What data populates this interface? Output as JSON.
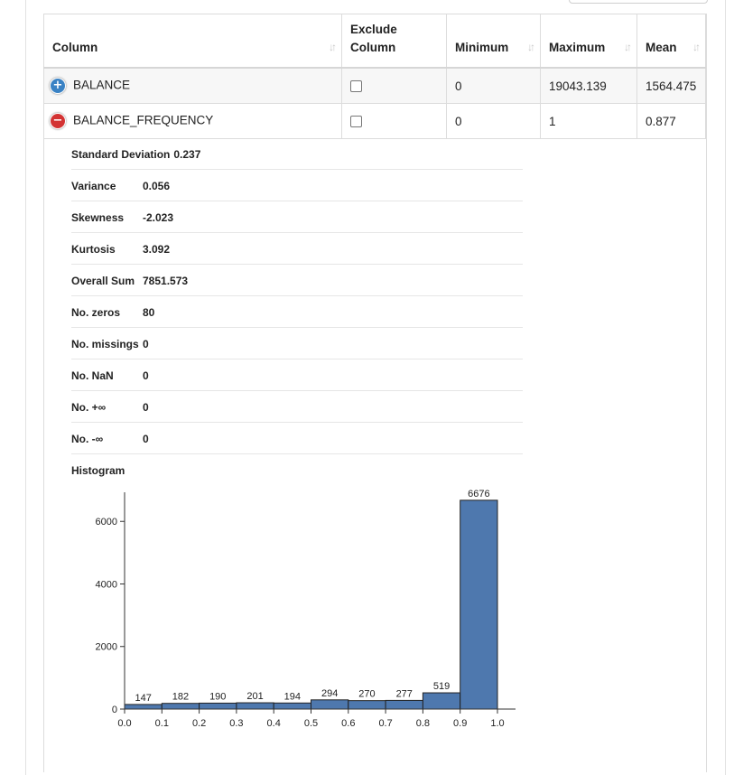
{
  "table": {
    "headers": [
      "Column",
      "Exclude Column",
      "Minimum",
      "Maximum",
      "Mean"
    ],
    "rows": [
      {
        "toggle": "+",
        "name": "BALANCE",
        "minimum": "0",
        "maximum": "19043.139",
        "mean": "1564.475"
      },
      {
        "toggle": "−",
        "name": "BALANCE_FREQUENCY",
        "minimum": "0",
        "maximum": "1",
        "mean": "0.877"
      }
    ]
  },
  "details": {
    "std_label": "Standard Deviation",
    "std_value": "0.237",
    "stats": [
      {
        "label": "Variance",
        "value": "0.056"
      },
      {
        "label": "Skewness",
        "value": "-2.023"
      },
      {
        "label": "Kurtosis",
        "value": "3.092"
      },
      {
        "label": "Overall Sum",
        "value": "7851.573"
      },
      {
        "label": "No. zeros",
        "value": "80"
      },
      {
        "label": "No. missings",
        "value": "0"
      },
      {
        "label": "No. NaN",
        "value": "0"
      },
      {
        "label": "No. +∞",
        "value": "0"
      },
      {
        "label": "No. -∞",
        "value": "0"
      }
    ],
    "histogram_label": "Histogram"
  },
  "chart_data": {
    "type": "bar",
    "bin_edges": [
      0.0,
      0.1,
      0.2,
      0.3,
      0.4,
      0.5,
      0.6,
      0.7,
      0.8,
      0.9,
      1.0
    ],
    "x_tick_labels": [
      "0.0",
      "0.1",
      "0.2",
      "0.3",
      "0.4",
      "0.5",
      "0.6",
      "0.7",
      "0.8",
      "0.9",
      "1.0"
    ],
    "values": [
      147,
      182,
      190,
      201,
      194,
      294,
      270,
      277,
      519,
      6676
    ],
    "y_ticks": [
      0,
      2000,
      4000,
      6000
    ],
    "ylim": [
      0,
      6700
    ],
    "bar_color": "#4e78ae"
  }
}
